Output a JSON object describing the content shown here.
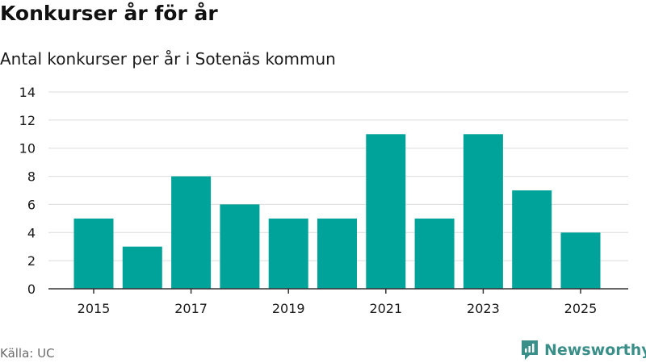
{
  "header": {
    "title": "Konkurser år för år",
    "subtitle": "Antal konkurser per år i Sotenäs kommun"
  },
  "footer": {
    "source": "Källa: UC",
    "brand": "Newsworthy"
  },
  "colors": {
    "bar": "#00a39a",
    "grid": "#dcdcdc",
    "axis": "#333333",
    "text": "#1a1a1a",
    "brand": "#3a8f88"
  },
  "chart_data": {
    "type": "bar",
    "title": "Konkurser år för år",
    "subtitle": "Antal konkurser per år i Sotenäs kommun",
    "xlabel": "",
    "ylabel": "",
    "categories": [
      "2015",
      "2016",
      "2017",
      "2018",
      "2019",
      "2020",
      "2021",
      "2022",
      "2023",
      "2024",
      "2025"
    ],
    "values": [
      5,
      3,
      8,
      6,
      5,
      5,
      11,
      5,
      11,
      7,
      4
    ],
    "x_tick_labels": [
      "2015",
      "2017",
      "2019",
      "2021",
      "2023",
      "2025"
    ],
    "y_ticks": [
      0,
      2,
      4,
      6,
      8,
      10,
      12,
      14
    ],
    "ylim": [
      0,
      14
    ],
    "grid": true,
    "legend": "none"
  }
}
